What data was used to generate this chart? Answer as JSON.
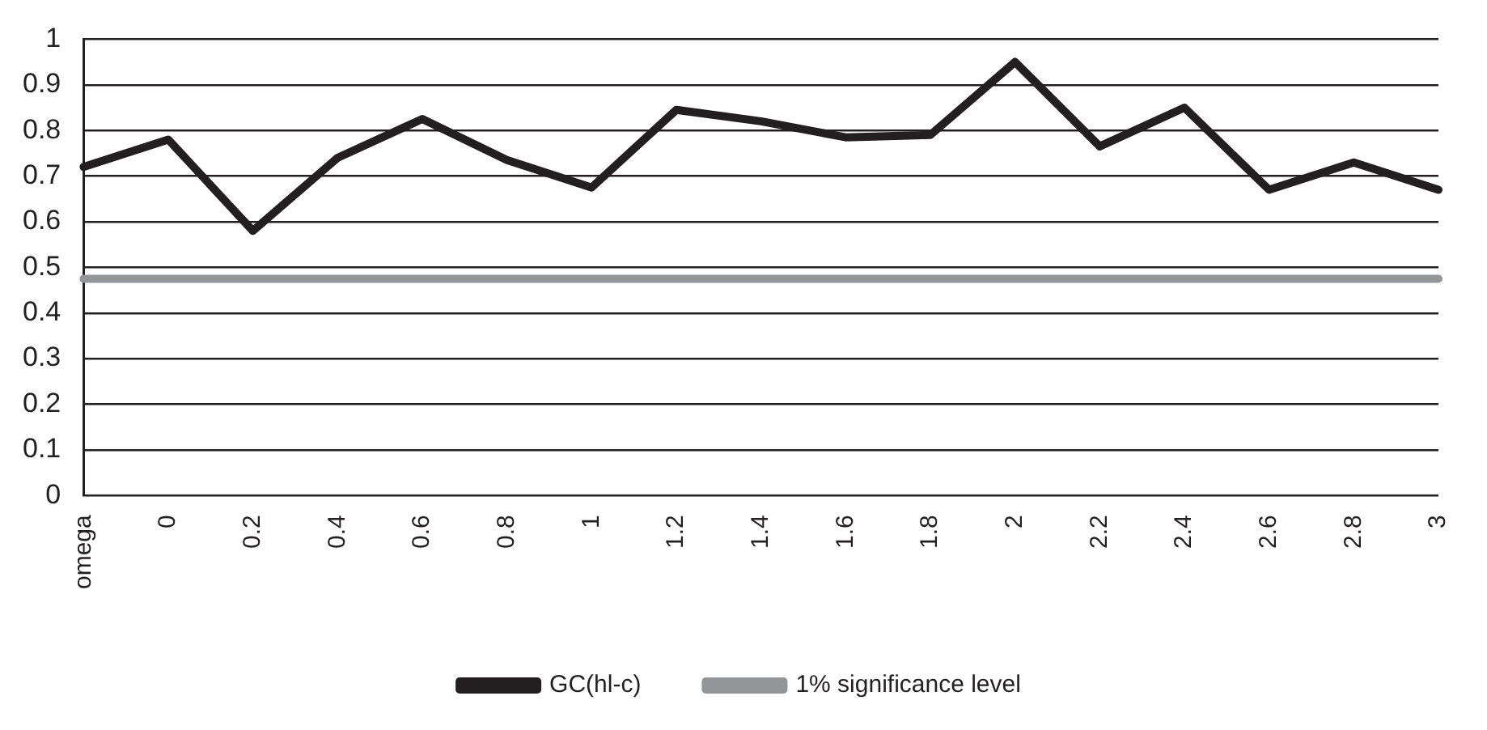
{
  "chart_data": {
    "type": "line",
    "categories": [
      "omega",
      "0",
      "0.2",
      "0.4",
      "0.6",
      "0.8",
      "1",
      "1.2",
      "1.4",
      "1.6",
      "1.8",
      "2",
      "2.2",
      "2.4",
      "2.6",
      "2.8",
      "3"
    ],
    "series": [
      {
        "name": "GC(hl-c)",
        "color": "#231f20",
        "values": [
          0.72,
          0.78,
          0.58,
          0.74,
          0.825,
          0.735,
          0.675,
          0.845,
          0.82,
          0.785,
          0.79,
          0.95,
          0.765,
          0.85,
          0.67,
          0.73,
          0.67
        ]
      },
      {
        "name": "1% significance level",
        "color": "#939598",
        "values": [
          0.475,
          0.475,
          0.475,
          0.475,
          0.475,
          0.475,
          0.475,
          0.475,
          0.475,
          0.475,
          0.475,
          0.475,
          0.475,
          0.475,
          0.475,
          0.475,
          0.475
        ]
      }
    ],
    "ylim": [
      0,
      1
    ],
    "yticks": [
      0,
      0.1,
      0.2,
      0.3,
      0.4,
      0.5,
      0.6,
      0.7,
      0.8,
      0.9,
      1
    ],
    "grid": "y",
    "legend": "bottom",
    "marker": "none",
    "line_style": "solid"
  }
}
